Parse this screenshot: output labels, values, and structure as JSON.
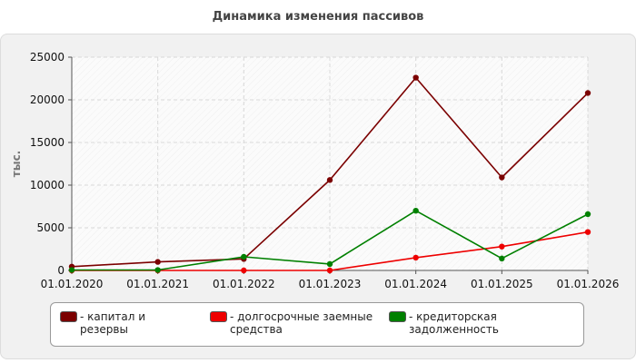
{
  "chart_data": {
    "type": "line",
    "title": "Динамика изменения пассивов",
    "ylabel": "тыс.",
    "xlabel": "",
    "x": [
      "01.01.2020",
      "01.01.2021",
      "01.01.2022",
      "01.01.2023",
      "01.01.2024",
      "01.01.2025",
      "01.01.2026"
    ],
    "ylim": [
      0,
      25000
    ],
    "yticks": [
      0,
      5000,
      10000,
      15000,
      20000,
      25000
    ],
    "grid": true,
    "legend_position": "bottom",
    "series": [
      {
        "name": "- капитал и резервы",
        "color": "#7b0000",
        "values": [
          450,
          1000,
          1350,
          10600,
          22600,
          10900,
          20800
        ]
      },
      {
        "name": "- долгосрочные заемные средства",
        "color": "#ee0000",
        "values": [
          0,
          0,
          0,
          0,
          1500,
          2800,
          4500
        ]
      },
      {
        "name": "- кредиторская задолженность",
        "color": "#008000",
        "values": [
          50,
          50,
          1600,
          750,
          7000,
          1400,
          6600
        ]
      }
    ]
  }
}
